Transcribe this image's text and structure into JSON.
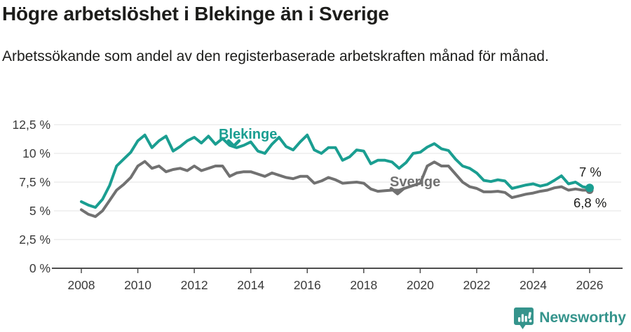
{
  "title": "Högre arbetslöshet i Blekinge än i Sverige",
  "subtitle": "Arbetssökande som andel av den registerbaserade arbetskraften månad för månad.",
  "footer": {
    "brand": "Newsworthy",
    "logo_icon": "newsworthy-speech-bubble-bar-chart"
  },
  "colors": {
    "blekinge": "#1a9e91",
    "sverige": "#717171",
    "grid": "#e3e3e3",
    "axis": "#4d4d4d",
    "text": "#1d1d1b",
    "axis_text": "#3a3a3a",
    "brand": "#35948c"
  },
  "chart_data": {
    "type": "line",
    "title": "Högre arbetslöshet i Blekinge än i Sverige",
    "subtitle": "Arbetssökande som andel av den registerbaserade arbetskraften månad för månad.",
    "xlabel": "",
    "ylabel": "",
    "grid": true,
    "legend_position": "inline-labels-on-lines",
    "xlim": [
      2007,
      2027.2
    ],
    "ylim": [
      0,
      13.4
    ],
    "x_unit": "year (monthly series, sampled quarterly)",
    "y_unit": "percent",
    "x": [
      2008.0,
      2008.25,
      2008.5,
      2008.75,
      2009.0,
      2009.25,
      2009.5,
      2009.75,
      2010.0,
      2010.25,
      2010.5,
      2010.75,
      2011.0,
      2011.25,
      2011.5,
      2011.75,
      2012.0,
      2012.25,
      2012.5,
      2012.75,
      2013.0,
      2013.25,
      2013.5,
      2013.75,
      2014.0,
      2014.25,
      2014.5,
      2014.75,
      2015.0,
      2015.25,
      2015.5,
      2015.75,
      2016.0,
      2016.25,
      2016.5,
      2016.75,
      2017.0,
      2017.25,
      2017.5,
      2017.75,
      2018.0,
      2018.25,
      2018.5,
      2018.75,
      2019.0,
      2019.25,
      2019.5,
      2019.75,
      2020.0,
      2020.25,
      2020.5,
      2020.75,
      2021.0,
      2021.25,
      2021.5,
      2021.75,
      2022.0,
      2022.25,
      2022.5,
      2022.75,
      2023.0,
      2023.25,
      2023.5,
      2023.75,
      2024.0,
      2024.25,
      2024.5,
      2024.75,
      2025.0,
      2025.25,
      2025.5,
      2025.75,
      2026.0
    ],
    "series": [
      {
        "name": "Blekinge",
        "color": "#1a9e91",
        "end_value_label": "7 %",
        "values": [
          5.8,
          5.5,
          5.3,
          6.0,
          7.2,
          8.9,
          9.5,
          10.1,
          11.1,
          11.6,
          10.5,
          11.1,
          11.5,
          10.2,
          10.6,
          11.1,
          11.4,
          10.9,
          11.5,
          10.8,
          11.3,
          10.7,
          10.5,
          10.7,
          11.0,
          10.2,
          10.0,
          10.8,
          11.4,
          10.6,
          10.3,
          11.0,
          11.6,
          10.3,
          10.0,
          10.5,
          10.5,
          9.4,
          9.7,
          10.3,
          10.2,
          9.1,
          9.4,
          9.4,
          9.25,
          8.7,
          9.2,
          10.0,
          10.1,
          10.55,
          10.85,
          10.4,
          10.25,
          9.5,
          8.9,
          8.7,
          8.3,
          7.65,
          7.55,
          7.7,
          7.6,
          6.95,
          7.1,
          7.25,
          7.35,
          7.15,
          7.3,
          7.65,
          8.05,
          7.35,
          7.5,
          7.1,
          7.0
        ]
      },
      {
        "name": "Sverige",
        "color": "#717171",
        "end_value_label": "6,8 %",
        "values": [
          5.1,
          4.7,
          4.5,
          5.0,
          5.9,
          6.8,
          7.3,
          7.9,
          8.9,
          9.3,
          8.7,
          8.9,
          8.4,
          8.6,
          8.7,
          8.5,
          8.9,
          8.5,
          8.7,
          8.9,
          8.9,
          8.0,
          8.3,
          8.4,
          8.4,
          8.2,
          8.0,
          8.3,
          8.1,
          7.9,
          7.8,
          8.0,
          8.0,
          7.4,
          7.6,
          7.9,
          7.7,
          7.4,
          7.45,
          7.5,
          7.4,
          6.9,
          6.7,
          6.75,
          6.8,
          6.8,
          7.0,
          7.2,
          7.4,
          8.9,
          9.25,
          8.9,
          8.9,
          8.2,
          7.5,
          7.1,
          6.95,
          6.65,
          6.65,
          6.7,
          6.6,
          6.15,
          6.3,
          6.45,
          6.55,
          6.7,
          6.8,
          7.0,
          7.1,
          6.8,
          6.9,
          6.8,
          6.8
        ]
      }
    ],
    "y_ticks": [
      {
        "value": 0,
        "label": "0 %"
      },
      {
        "value": 2.5,
        "label": "2,5 %"
      },
      {
        "value": 5,
        "label": "5 %"
      },
      {
        "value": 7.5,
        "label": "7,5 %"
      },
      {
        "value": 10,
        "label": "10 %"
      },
      {
        "value": 12.5,
        "label": "12,5 %"
      }
    ],
    "x_ticks": [
      {
        "value": 2008,
        "label": "2008"
      },
      {
        "value": 2010,
        "label": "2010"
      },
      {
        "value": 2012,
        "label": "2012"
      },
      {
        "value": 2014,
        "label": "2014"
      },
      {
        "value": 2016,
        "label": "2016"
      },
      {
        "value": 2018,
        "label": "2018"
      },
      {
        "value": 2020,
        "label": "2020"
      },
      {
        "value": 2022,
        "label": "2022"
      },
      {
        "value": 2024,
        "label": "2024"
      },
      {
        "value": 2026,
        "label": "2026"
      }
    ],
    "end_labels": {
      "blekinge": "7 %",
      "sverige": "6,8 %"
    }
  }
}
